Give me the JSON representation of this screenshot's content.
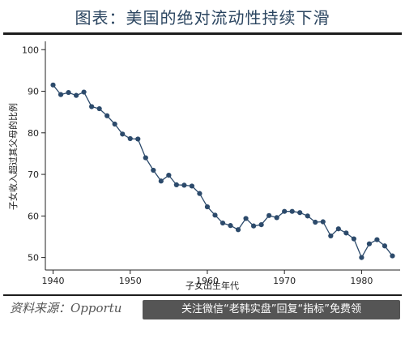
{
  "page": {
    "title": "图表：美国的绝对流动性持续下滑",
    "source": "资料来源：Opportu",
    "overlay_text": "关注微信“老韩实盘”回复“指标”免费领"
  },
  "chart_data": {
    "type": "line",
    "title": "",
    "xlabel": "子女出生年代",
    "ylabel": "子女收入超过其父母的比例",
    "xlim": [
      1939,
      1985
    ],
    "ylim": [
      47,
      102
    ],
    "xticks": [
      1940,
      1950,
      1960,
      1970,
      1980
    ],
    "yticks": [
      50,
      60,
      70,
      80,
      90,
      100
    ],
    "grid": false,
    "line_color": "#2c4a6b",
    "marker_color": "#2c4a6b",
    "x": [
      1940,
      1941,
      1942,
      1943,
      1944,
      1945,
      1946,
      1947,
      1948,
      1949,
      1950,
      1951,
      1952,
      1953,
      1954,
      1955,
      1956,
      1957,
      1958,
      1959,
      1960,
      1961,
      1962,
      1963,
      1964,
      1965,
      1966,
      1967,
      1968,
      1969,
      1970,
      1971,
      1972,
      1973,
      1974,
      1975,
      1976,
      1977,
      1978,
      1979,
      1980,
      1981,
      1982,
      1983,
      1984
    ],
    "y": [
      91.5,
      89.2,
      89.7,
      89.0,
      89.8,
      86.3,
      85.8,
      84.1,
      82.1,
      79.7,
      78.6,
      78.5,
      74.0,
      71.0,
      68.4,
      69.8,
      67.5,
      67.4,
      67.2,
      65.4,
      62.2,
      60.2,
      58.3,
      57.7,
      56.7,
      59.4,
      57.6,
      57.9,
      60.1,
      59.6,
      61.1,
      61.1,
      60.8,
      60.0,
      58.5,
      58.6,
      55.2,
      56.9,
      55.9,
      54.5,
      50.0,
      53.3,
      54.3,
      52.8,
      50.4
    ]
  }
}
